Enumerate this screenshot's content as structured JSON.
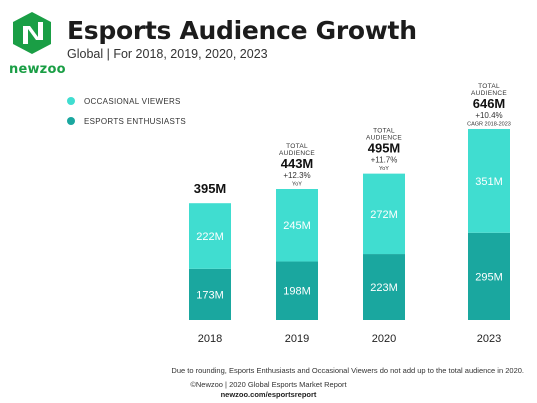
{
  "brand": {
    "name": "newzoo",
    "color": "#1a9e45"
  },
  "header": {
    "title": "Esports Audience Growth",
    "subtitle": "Global | For 2018, 2019, 2020, 2023"
  },
  "legend": [
    {
      "label": "OCCASIONAL VIEWERS",
      "color": "#40ddd0"
    },
    {
      "label": "ESPORTS ENTHUSIASTS",
      "color": "#1aa79f"
    }
  ],
  "chart_data": {
    "type": "bar",
    "stacked": true,
    "categories": [
      "2018",
      "2019",
      "2020",
      "2023"
    ],
    "series": [
      {
        "name": "ESPORTS ENTHUSIASTS",
        "values": [
          173,
          198,
          223,
          295
        ],
        "labels": [
          "173M",
          "198M",
          "223M",
          "295M"
        ],
        "color": "#1aa79f"
      },
      {
        "name": "OCCASIONAL VIEWERS",
        "values": [
          222,
          245,
          272,
          351
        ],
        "labels": [
          "222M",
          "245M",
          "272M",
          "351M"
        ],
        "color": "#40ddd0"
      }
    ],
    "totals": [
      {
        "top_caption": "",
        "caption": "",
        "value": "395M",
        "growth": "",
        "growth_caption": ""
      },
      {
        "top_caption": "TOTAL",
        "caption": "AUDIENCE",
        "value": "443M",
        "growth": "+12.3%",
        "growth_caption": "YoY"
      },
      {
        "top_caption": "TOTAL",
        "caption": "AUDIENCE",
        "value": "495M",
        "growth": "+11.7%",
        "growth_caption": "YoY"
      },
      {
        "top_caption": "TOTAL",
        "caption": "AUDIENCE",
        "value": "646M",
        "growth": "+10.4%",
        "growth_caption": "CAGR 2018-2023"
      }
    ],
    "ylim": [
      0,
      700
    ],
    "grid": false,
    "legend_position": "top-left"
  },
  "footer": {
    "note": "Due to rounding, Esports Enthusiasts and Occasional Viewers do not add up to the total audience in 2020.",
    "copyright": "©Newzoo | 2020 Global Esports Market Report",
    "url": "newzoo.com/esportsreport"
  }
}
